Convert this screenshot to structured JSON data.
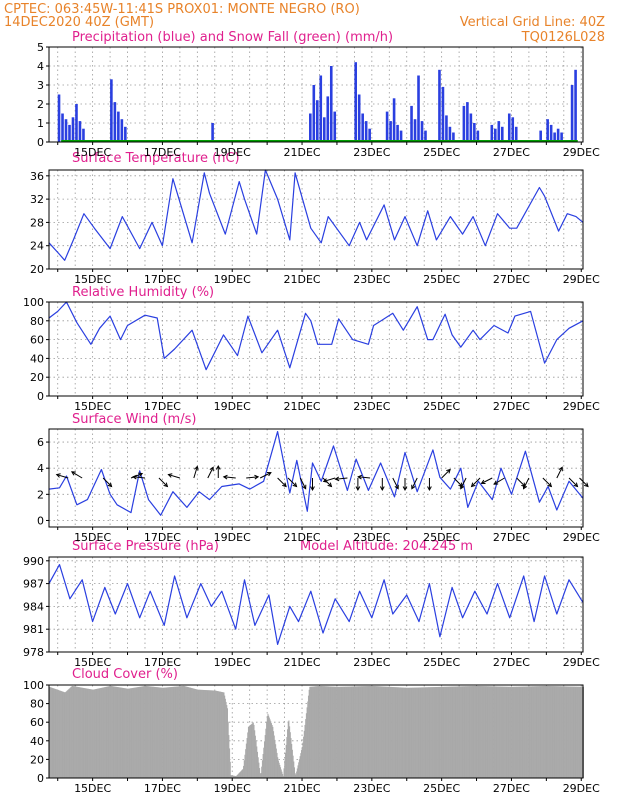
{
  "header": {
    "line1": "CPTEC:   063:45W-11:41S   PROX01: MONTE NEGRO (RO)",
    "line2_left": "14DEC2020 40Z (GMT)",
    "line2_right": "Vertical Grid Line: 40Z",
    "code": "TQ0126L028"
  },
  "colors": {
    "header": "#e8832a",
    "title": "#e0208e",
    "line": "#2a3fe0",
    "precip": "#2a3fe0",
    "snow": "#00a000",
    "cloud": "#a9a9a9",
    "grid": "#999999"
  },
  "chart_data": [
    {
      "id": "precip",
      "type": "bar",
      "title": "Precipitation (blue) and Snow Fall (green) (mm/h)",
      "x_tick_labels": [
        "15DEC",
        "17DEC",
        "19DEC",
        "21DEC",
        "23DEC",
        "25DEC",
        "27DEC",
        "29DEC"
      ],
      "ylim": [
        0,
        5
      ],
      "y_ticks": [
        0,
        1,
        2,
        3,
        4,
        5
      ],
      "series": [
        {
          "name": "Precipitation",
          "color": "#2a3fe0",
          "x": [
            14.0,
            14.1,
            14.2,
            14.3,
            14.4,
            14.5,
            14.6,
            14.7,
            15.5,
            15.6,
            15.7,
            15.8,
            15.9,
            18.4,
            21.2,
            21.3,
            21.4,
            21.5,
            21.6,
            21.7,
            21.8,
            21.9,
            22.5,
            22.6,
            22.7,
            22.8,
            22.9,
            23.4,
            23.5,
            23.6,
            23.7,
            23.8,
            24.1,
            24.2,
            24.3,
            24.4,
            24.5,
            24.9,
            25.0,
            25.1,
            25.2,
            25.3,
            25.6,
            25.7,
            25.8,
            25.9,
            26.0,
            26.4,
            26.5,
            26.6,
            26.7,
            26.9,
            27.0,
            27.1,
            27.8,
            28.0,
            28.1,
            28.2,
            28.3,
            28.4,
            28.7,
            28.8
          ],
          "values": [
            2.5,
            1.5,
            1.2,
            0.9,
            1.3,
            2.0,
            1.1,
            0.7,
            3.3,
            2.1,
            1.6,
            1.2,
            0.8,
            1.0,
            1.5,
            3.0,
            2.2,
            3.5,
            1.3,
            2.4,
            4.0,
            1.6,
            4.2,
            2.5,
            1.5,
            1.1,
            0.7,
            1.6,
            1.1,
            2.3,
            0.9,
            0.6,
            1.9,
            1.2,
            3.5,
            1.1,
            0.6,
            3.8,
            2.9,
            1.4,
            0.8,
            0.5,
            1.9,
            2.1,
            1.5,
            1.0,
            0.6,
            0.9,
            0.7,
            1.1,
            0.8,
            1.5,
            1.3,
            0.8,
            0.6,
            1.2,
            0.9,
            0.5,
            0.7,
            0.5,
            3.0,
            3.8
          ]
        },
        {
          "name": "Snow Fall",
          "color": "#00a000",
          "values": []
        }
      ]
    },
    {
      "id": "temp",
      "type": "line",
      "title": "Surface Temperature (nC)",
      "x_tick_labels": [
        "15DEC",
        "17DEC",
        "19DEC",
        "21DEC",
        "23DEC",
        "25DEC",
        "27DEC",
        "29DEC"
      ],
      "ylim": [
        20,
        37
      ],
      "y_ticks": [
        20,
        24,
        28,
        32,
        36
      ],
      "series": [
        {
          "name": "Temperature",
          "color": "#2a3fe0",
          "x": [
            13.75,
            14.05,
            14.2,
            14.45,
            14.75,
            15.05,
            15.5,
            15.85,
            16.35,
            16.7,
            17.0,
            17.3,
            17.85,
            18.2,
            18.35,
            18.8,
            19.2,
            19.35,
            19.7,
            19.95,
            20.3,
            20.65,
            20.8,
            21.25,
            21.55,
            21.75,
            22.35,
            22.65,
            22.85,
            23.35,
            23.65,
            23.95,
            24.3,
            24.6,
            24.85,
            25.25,
            25.6,
            25.9,
            26.25,
            26.6,
            26.95,
            27.15,
            27.8,
            27.95,
            28.35,
            28.6,
            28.85,
            29.05
          ],
          "values": [
            24.5,
            22.5,
            21.5,
            25,
            29.5,
            27,
            23.5,
            29,
            23.5,
            28,
            24,
            35.5,
            24.5,
            36.5,
            33,
            26,
            35,
            32,
            26,
            37,
            32,
            25,
            36.5,
            27,
            24.5,
            29,
            24,
            28,
            25,
            31,
            25,
            29,
            24,
            30,
            25,
            29,
            26,
            29,
            24,
            29.5,
            27,
            27,
            34,
            32.5,
            26.5,
            29.5,
            29,
            28
          ]
        }
      ]
    },
    {
      "id": "rh",
      "type": "line",
      "title": "Relative Humidity (%)",
      "x_tick_labels": [
        "15DEC",
        "17DEC",
        "19DEC",
        "21DEC",
        "23DEC",
        "25DEC",
        "27DEC",
        "29DEC"
      ],
      "ylim": [
        0,
        100
      ],
      "y_ticks": [
        0,
        20,
        40,
        60,
        80,
        100
      ],
      "series": [
        {
          "name": "Humidity",
          "color": "#2a3fe0",
          "x": [
            13.75,
            14.0,
            14.25,
            14.55,
            14.95,
            15.2,
            15.5,
            15.8,
            16.0,
            16.5,
            16.85,
            17.05,
            17.35,
            17.85,
            18.25,
            18.75,
            19.15,
            19.45,
            19.85,
            20.3,
            20.65,
            21.1,
            21.25,
            21.45,
            21.85,
            22.05,
            22.45,
            22.9,
            23.05,
            23.6,
            23.9,
            24.3,
            24.6,
            24.75,
            25.1,
            25.3,
            25.55,
            25.9,
            26.1,
            26.5,
            26.9,
            27.1,
            27.55,
            27.95,
            28.3,
            28.65,
            28.95,
            29.05
          ],
          "values": [
            83,
            90,
            100,
            78,
            55,
            72,
            85,
            60,
            75,
            86,
            83,
            40,
            50,
            70,
            28,
            65,
            43,
            85,
            46,
            70,
            30,
            88,
            80,
            55,
            55,
            82,
            60,
            55,
            75,
            88,
            70,
            95,
            60,
            60,
            87,
            65,
            52,
            70,
            60,
            75,
            67,
            85,
            90,
            35,
            60,
            72,
            78,
            80
          ]
        }
      ]
    },
    {
      "id": "wind",
      "type": "line",
      "title": "Surface Wind (m/s)",
      "x_tick_labels": [
        "15DEC",
        "17DEC",
        "19DEC",
        "21DEC",
        "23DEC",
        "25DEC",
        "27DEC",
        "29DEC"
      ],
      "ylim": [
        -0.5,
        7
      ],
      "y_ticks": [
        0,
        2,
        4,
        6
      ],
      "series": [
        {
          "name": "Wind speed",
          "color": "#2a3fe0",
          "x": [
            13.75,
            14.05,
            14.25,
            14.55,
            14.85,
            15.25,
            15.5,
            15.7,
            16.1,
            16.35,
            16.6,
            16.95,
            17.3,
            17.7,
            18.05,
            18.35,
            18.7,
            19.2,
            19.5,
            19.9,
            20.3,
            20.65,
            20.85,
            21.15,
            21.3,
            21.55,
            21.9,
            22.3,
            22.55,
            22.9,
            23.25,
            23.65,
            23.95,
            24.3,
            24.75,
            24.95,
            25.25,
            25.55,
            25.75,
            26.05,
            26.45,
            26.7,
            27.0,
            27.4,
            27.8,
            28.05,
            28.3,
            28.65,
            29.05
          ],
          "values": [
            2.4,
            2.5,
            3.4,
            1.2,
            1.6,
            3.9,
            2.0,
            1.2,
            0.6,
            3.8,
            1.6,
            0.4,
            2.2,
            1.0,
            2.2,
            1.6,
            2.6,
            2.8,
            2.4,
            3.0,
            6.8,
            2.1,
            4.6,
            0.7,
            4.4,
            3.0,
            5.7,
            2.3,
            4.7,
            2.3,
            4.4,
            1.8,
            5.2,
            2.2,
            5.4,
            3.3,
            2.4,
            4.0,
            1.0,
            3.0,
            1.6,
            4.0,
            2.0,
            5.3,
            1.4,
            2.6,
            0.8,
            3.0,
            1.7
          ]
        }
      ],
      "arrows": {
        "x": [
          14.3,
          14.7,
          15.3,
          16.1,
          16.5,
          16.9,
          17.5,
          17.9,
          18.3,
          18.6,
          19.1,
          19.4,
          19.8,
          20.3,
          20.6,
          20.95,
          21.3,
          21.6,
          21.95,
          22.3,
          22.6,
          22.95,
          23.3,
          23.6,
          23.95,
          24.3,
          24.65,
          25.0,
          25.35,
          25.7,
          26.1,
          26.45,
          26.8,
          27.15,
          27.5,
          27.9,
          28.3,
          28.65,
          28.95
        ],
        "u": [
          -1,
          -1,
          1,
          1,
          -1,
          1,
          -1,
          0.3,
          0.5,
          0,
          -1,
          1,
          1,
          1,
          1,
          0.5,
          0,
          1,
          -1,
          -1,
          0,
          -1,
          0,
          0.5,
          0,
          -0.5,
          0,
          1,
          1,
          -0.5,
          -1,
          -1,
          -1,
          1,
          -0.5,
          1,
          0.5,
          1,
          1
        ],
        "v": [
          0.3,
          0.6,
          -1,
          0.4,
          0.1,
          -1,
          0.3,
          1,
          1,
          1,
          0.1,
          0.1,
          0.5,
          -1,
          -1,
          -1,
          -1,
          -1,
          -0.3,
          -0.1,
          -1,
          0.1,
          -1,
          -1,
          -1,
          -1,
          -1,
          1,
          -1,
          -1,
          -1,
          -0.5,
          -0.6,
          -1,
          -1,
          -1,
          1,
          -1,
          -1
        ]
      }
    },
    {
      "id": "pressure",
      "type": "line",
      "title": "Surface Pressure (hPa)",
      "extra_label": "Model Altitude: 204.245 m",
      "x_tick_labels": [
        "15DEC",
        "17DEC",
        "19DEC",
        "21DEC",
        "23DEC",
        "25DEC",
        "27DEC",
        "29DEC"
      ],
      "ylim": [
        978,
        990.5
      ],
      "y_ticks": [
        978,
        981,
        984,
        987,
        990
      ],
      "series": [
        {
          "name": "Pressure",
          "color": "#2a3fe0",
          "x": [
            13.75,
            14.05,
            14.35,
            14.7,
            15.0,
            15.35,
            15.65,
            16.0,
            16.35,
            16.65,
            17.05,
            17.35,
            17.7,
            18.1,
            18.4,
            18.7,
            19.1,
            19.35,
            19.65,
            20.05,
            20.3,
            20.65,
            20.9,
            21.25,
            21.6,
            21.95,
            22.35,
            22.65,
            23.0,
            23.35,
            23.6,
            24.0,
            24.35,
            24.65,
            24.95,
            25.3,
            25.6,
            25.95,
            26.3,
            26.6,
            26.95,
            27.35,
            27.65,
            27.95,
            28.3,
            28.65,
            29.05
          ],
          "values": [
            987,
            989.5,
            985,
            987.5,
            982,
            986.5,
            983,
            987,
            982.5,
            986,
            981.5,
            988,
            982.5,
            987,
            984,
            986,
            981,
            987.5,
            981.5,
            985.5,
            979,
            984,
            982,
            986,
            980.5,
            985,
            982,
            986,
            982.5,
            987.5,
            983,
            985.5,
            982,
            987,
            980,
            986.5,
            982.5,
            986,
            983,
            987,
            982.5,
            988,
            982,
            988,
            983,
            987.5,
            984.5
          ]
        }
      ]
    },
    {
      "id": "cloud",
      "type": "area",
      "title": "Cloud Cover (%)",
      "x_tick_labels": [
        "15DEC",
        "17DEC",
        "19DEC",
        "21DEC",
        "23DEC",
        "25DEC",
        "27DEC",
        "29DEC"
      ],
      "ylim": [
        0,
        100
      ],
      "y_ticks": [
        0,
        20,
        40,
        60,
        80,
        100
      ],
      "series": [
        {
          "name": "Cloud cover",
          "color": "#a9a9a9",
          "x": [
            13.75,
            14.2,
            14.4,
            15.0,
            15.5,
            16.0,
            16.5,
            17.0,
            17.6,
            18.0,
            18.5,
            18.75,
            18.85,
            18.95,
            19.1,
            19.3,
            19.45,
            19.6,
            19.8,
            20.0,
            20.15,
            20.3,
            20.45,
            20.6,
            20.8,
            21.0,
            21.2,
            21.5,
            22.0,
            23.0,
            24.0,
            25.0,
            26.0,
            27.0,
            28.0,
            29.05
          ],
          "values": [
            98,
            92,
            99,
            95,
            99,
            96,
            99,
            97,
            99,
            95,
            94,
            92,
            75,
            3,
            2,
            10,
            55,
            60,
            2,
            70,
            55,
            20,
            2,
            65,
            2,
            35,
            98,
            99,
            98,
            99,
            97,
            98,
            99,
            98,
            99,
            98
          ]
        }
      ]
    }
  ]
}
